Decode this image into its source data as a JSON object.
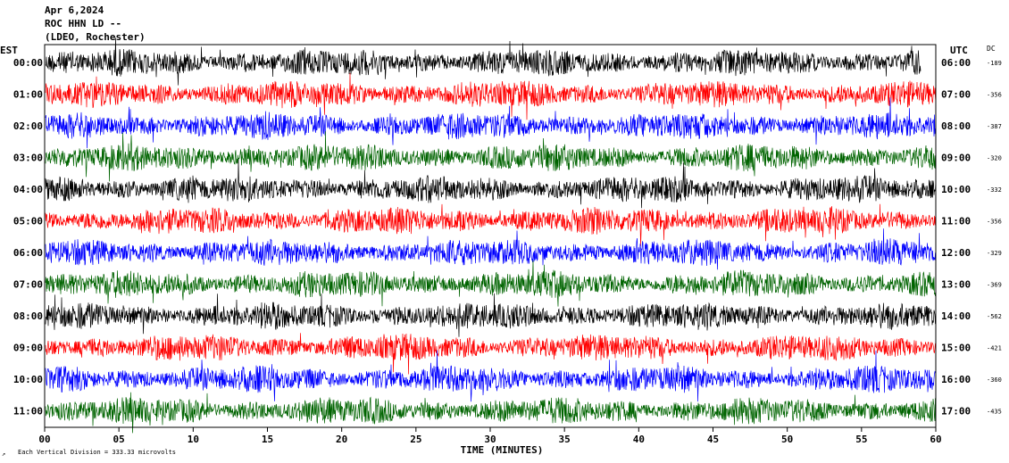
{
  "header": {
    "date": "Apr 6,2024",
    "station": "ROC HHN LD --",
    "network": "(LDEO, Rochester)"
  },
  "left_axis_label": "EST",
  "right_axis_label": "UTC",
  "dc_label": "DC",
  "footer": {
    "scale_note": "Each Vertical Division =  333.33 microvolts",
    "corner_mark": "↗"
  },
  "colors": {
    "trace_cycle": [
      "#000000",
      "#ff0000",
      "#0000ff",
      "#006400"
    ],
    "axis": "#000000",
    "background": "#ffffff"
  },
  "chart_data": {
    "type": "line",
    "title": "",
    "xlabel": "TIME (MINUTES)",
    "ylabel": "",
    "xlim": [
      0,
      60
    ],
    "x_ticks": [
      "00",
      "05",
      "10",
      "15",
      "20",
      "25",
      "30",
      "35",
      "40",
      "45",
      "50",
      "55",
      "60"
    ],
    "grid": false,
    "rows": [
      {
        "est": "00:00",
        "utc": "06:00",
        "dc": "-189",
        "end_minute": 59
      },
      {
        "est": "01:00",
        "utc": "07:00",
        "dc": "-356",
        "end_minute": 60
      },
      {
        "est": "02:00",
        "utc": "08:00",
        "dc": "-387",
        "end_minute": 60
      },
      {
        "est": "03:00",
        "utc": "09:00",
        "dc": "-320",
        "end_minute": 60
      },
      {
        "est": "04:00",
        "utc": "10:00",
        "dc": "-332",
        "end_minute": 60
      },
      {
        "est": "05:00",
        "utc": "11:00",
        "dc": "-356",
        "end_minute": 60
      },
      {
        "est": "06:00",
        "utc": "12:00",
        "dc": "-329",
        "end_minute": 60
      },
      {
        "est": "07:00",
        "utc": "13:00",
        "dc": "-369",
        "end_minute": 60
      },
      {
        "est": "08:00",
        "utc": "14:00",
        "dc": "-562",
        "end_minute": 60
      },
      {
        "est": "09:00",
        "utc": "15:00",
        "dc": "-421",
        "end_minute": 60
      },
      {
        "est": "10:00",
        "utc": "16:00",
        "dc": "-360",
        "end_minute": 60
      },
      {
        "est": "11:00",
        "utc": "17:00",
        "dc": "-435",
        "end_minute": 60
      }
    ]
  }
}
